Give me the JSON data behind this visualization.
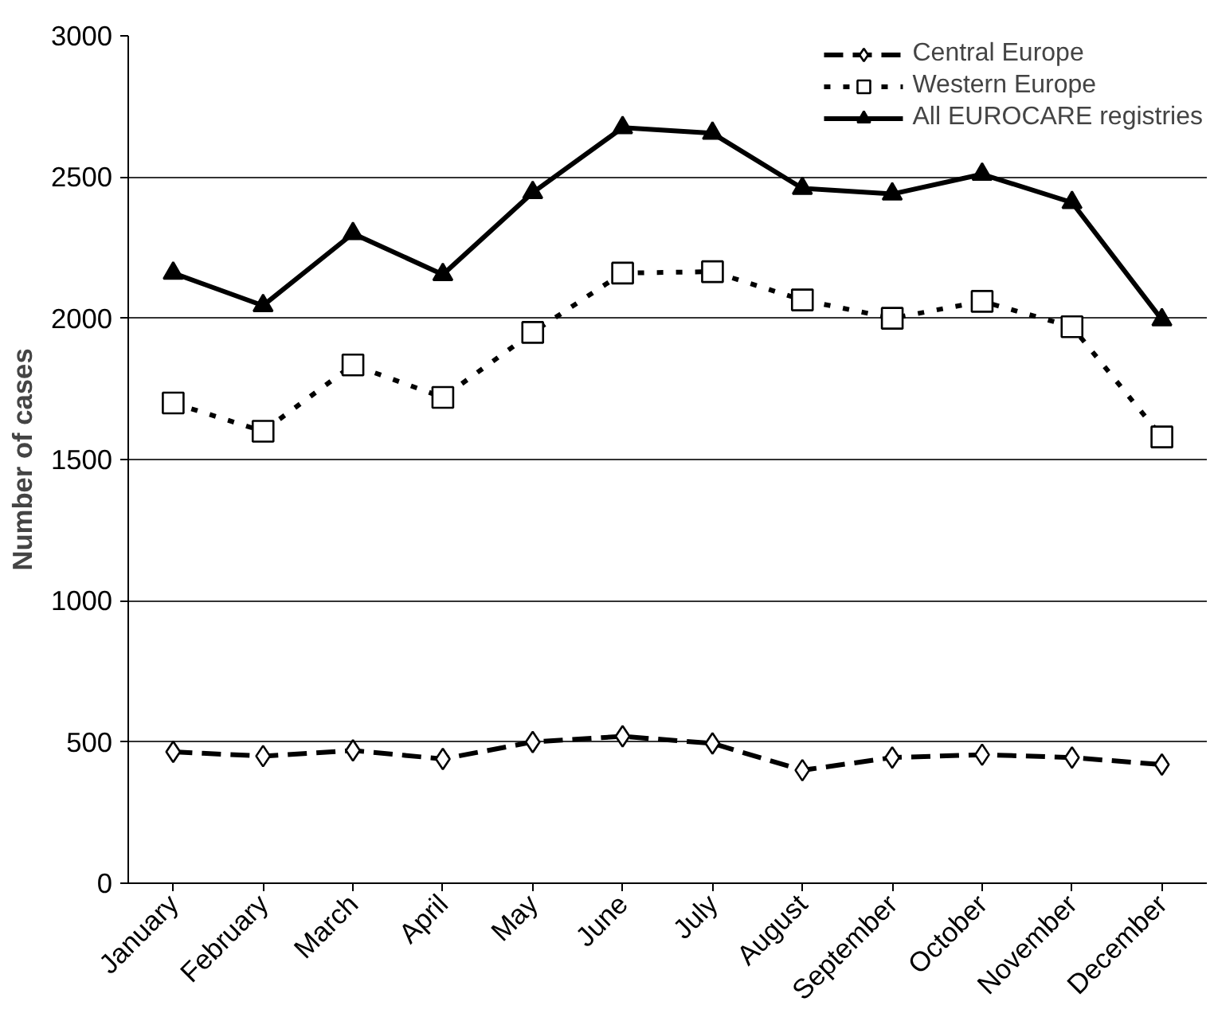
{
  "chart_data": {
    "type": "line",
    "ylabel": "Number of cases",
    "categories": [
      "January",
      "February",
      "March",
      "April",
      "May",
      "June",
      "July",
      "August",
      "September",
      "October",
      "November",
      "December"
    ],
    "series": [
      {
        "name": "Central Europe",
        "color": "#000000",
        "marker": "diamond",
        "line_style": "dashed",
        "values": [
          465,
          450,
          470,
          440,
          500,
          520,
          495,
          400,
          445,
          455,
          445,
          420
        ]
      },
      {
        "name": "Western Europe",
        "color": "#000000",
        "marker": "square",
        "line_style": "dotted",
        "values": [
          1700,
          1600,
          1835,
          1720,
          1950,
          2160,
          2165,
          2065,
          2000,
          2060,
          1970,
          1580
        ]
      },
      {
        "name": "All EUROCARE registries",
        "color": "#000000",
        "marker": "triangle",
        "line_style": "solid",
        "values": [
          2160,
          2045,
          2300,
          2155,
          2445,
          2675,
          2655,
          2460,
          2440,
          2510,
          2410,
          1995
        ]
      }
    ],
    "ylim": [
      0,
      3000
    ],
    "yticks": [
      0,
      500,
      1000,
      1500,
      2000,
      2500,
      3000
    ],
    "grid": "y",
    "legend": "top right"
  }
}
